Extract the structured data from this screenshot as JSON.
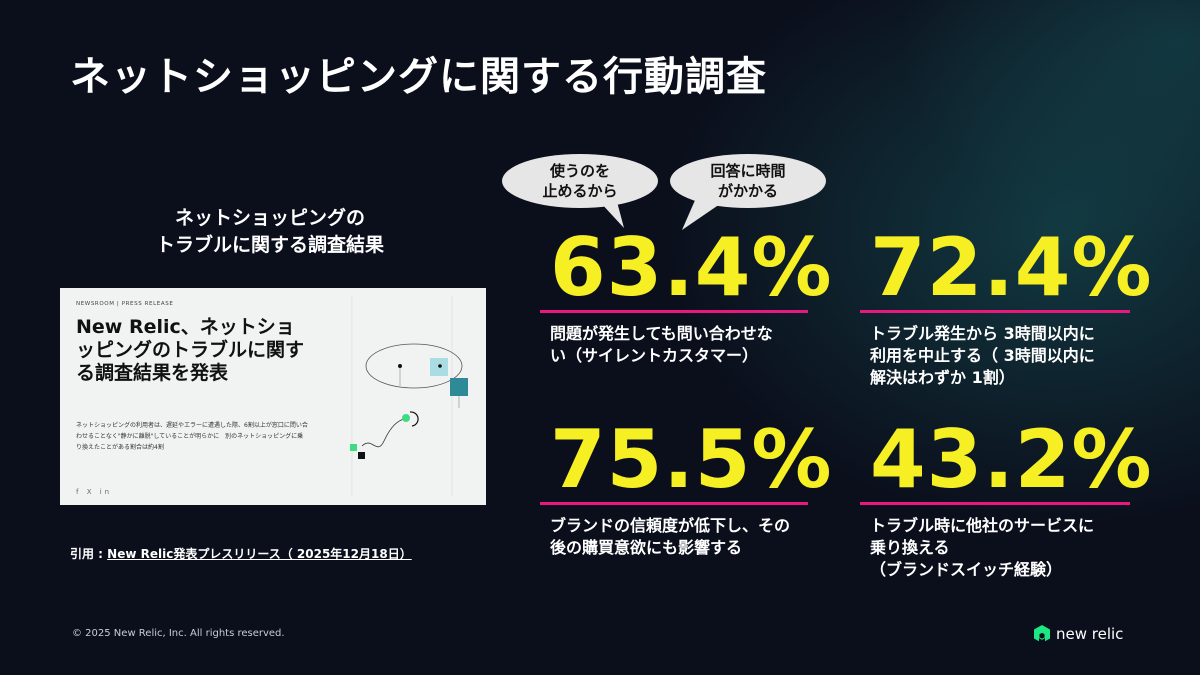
{
  "title": "ネットショッピングに関する行動調査",
  "left_heading": {
    "line1": "ネットショッピングの",
    "line2": "トラブルに関する調査結果"
  },
  "press_release": {
    "nav": "NEWSROOM  |  PRESS RELEASE",
    "headline": "New Relic、ネットショッピングのトラブルに関する調査結果を発表",
    "body": "ネットショッピングの利用者は、遅延やエラーに遭遇した際、6割以上が窓口に問い合わせることなく\"静かに離脱\"していることが明らかに　別のネットショッピングに乗り換えたことがある割合は約4割",
    "social": "f X in"
  },
  "citation": {
    "prefix": "引用 : ",
    "link": "New Relic発表プレスリリース（ 2025年12月18日）"
  },
  "bubbles": [
    {
      "line1": "使うのを",
      "line2": "止めるから"
    },
    {
      "line1": "回答に時間",
      "line2": "がかかる"
    }
  ],
  "stats": [
    {
      "value": "63.4%",
      "line1": "問題が発生しても問い合わせな",
      "line2": "い（サイレントカスタマー）",
      "line3": ""
    },
    {
      "value": "72.4%",
      "line1": "トラブル発生から 3時間以内に",
      "line2": "利用を中止する（ 3時間以内に",
      "line3": "解決はわずか 1割）"
    },
    {
      "value": "75.5%",
      "line1": "ブランドの信頼度が低下し、その",
      "line2": "後の購買意欲にも影響する",
      "line3": ""
    },
    {
      "value": "43.2%",
      "line1": "トラブル時に他社のサービスに",
      "line2": "乗り換える",
      "line3": "（ブランドスイッチ経験）"
    }
  ],
  "footer": {
    "copyright": "© 2025 New Relic, Inc. All rights reserved.",
    "logo": "new relic"
  },
  "colors": {
    "accent_yellow": "#f6ef23",
    "rule_pink": "#e8187f",
    "background": "#0b0f1c",
    "teal": "#2e8a96"
  }
}
